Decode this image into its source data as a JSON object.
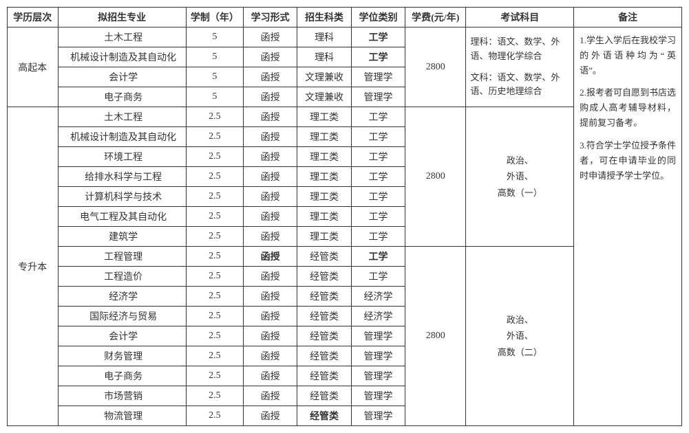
{
  "headers": {
    "level": "学历层次",
    "major": "拟招生专业",
    "years": "学制（年）",
    "mode": "学习形式",
    "cat": "招生科类",
    "degree": "学位类别",
    "fee": "学费(元/年)",
    "subjects": "考试科目",
    "remarks": "备注"
  },
  "g1": {
    "level": "高起本",
    "rows": [
      {
        "major": "土木工程",
        "years": "5",
        "mode": "函授",
        "cat": "理科",
        "degree": "工学",
        "degree_bold": true
      },
      {
        "major": "机械设计制造及其自动化",
        "years": "5",
        "mode": "函授",
        "cat": "理科",
        "degree": "工学",
        "degree_bold": true
      },
      {
        "major": "会计学",
        "years": "5",
        "mode": "函授",
        "cat": "文理兼收",
        "degree": "管理学"
      },
      {
        "major": "电子商务",
        "years": "5",
        "mode": "函授",
        "cat": "文理兼收",
        "degree": "管理学"
      }
    ],
    "fee": "2800",
    "subjects_line1": "理科：语文、数学、外语、物理化学综合",
    "subjects_line2": "文科：语文、数学、外语、历史地理综合"
  },
  "g2": {
    "level": "专升本",
    "fee": "2800",
    "subjects": "政治、\n外语、\n高数（一）",
    "rows": [
      {
        "major": "土木工程",
        "years": "2.5",
        "mode": "函授",
        "cat": "理工类",
        "degree": "工学"
      },
      {
        "major": "机械设计制造及其自动化",
        "years": "2.5",
        "mode": "函授",
        "cat": "理工类",
        "degree": "工学"
      },
      {
        "major": "环境工程",
        "years": "2.5",
        "mode": "函授",
        "cat": "理工类",
        "degree": "工学"
      },
      {
        "major": "给排水科学与工程",
        "years": "2.5",
        "mode": "函授",
        "cat": "理工类",
        "degree": "工学"
      },
      {
        "major": "计算机科学与技术",
        "years": "2.5",
        "mode": "函授",
        "cat": "理工类",
        "degree": "工学"
      },
      {
        "major": "电气工程及其自动化",
        "years": "2.5",
        "mode": "函授",
        "cat": "理工类",
        "degree": "工学"
      },
      {
        "major": "建筑学",
        "years": "2.5",
        "mode": "函授",
        "cat": "理工类",
        "degree": "工学"
      }
    ]
  },
  "g3": {
    "fee": "2800",
    "subjects": "政治、\n外语、\n高数（二）",
    "rows": [
      {
        "major": "工程管理",
        "years": "2.5",
        "mode": "函授",
        "mode_bold": true,
        "cat": "经管类",
        "degree": "工学",
        "degree_bold": true
      },
      {
        "major": "工程造价",
        "years": "2.5",
        "mode": "函授",
        "cat": "经管类",
        "degree": "工学"
      },
      {
        "major": "经济学",
        "years": "2.5",
        "mode": "函授",
        "cat": "经管类",
        "degree": "经济学"
      },
      {
        "major": "国际经济与贸易",
        "years": "2.5",
        "mode": "函授",
        "cat": "经管类",
        "degree": "经济学"
      },
      {
        "major": "会计学",
        "years": "2.5",
        "mode": "函授",
        "cat": "经管类",
        "degree": "管理学"
      },
      {
        "major": "财务管理",
        "years": "2.5",
        "mode": "函授",
        "cat": "经管类",
        "degree": "管理学"
      },
      {
        "major": "电子商务",
        "years": "2.5",
        "mode": "函授",
        "cat": "经管类",
        "degree": "管理学"
      },
      {
        "major": "市场营销",
        "years": "2.5",
        "mode": "函授",
        "cat": "经管类",
        "degree": "管理学"
      },
      {
        "major": "物流管理",
        "years": "2.5",
        "mode": "函授",
        "cat": "经管类",
        "cat_bold": true,
        "degree": "管理学"
      }
    ]
  },
  "remarks": {
    "p1": "1.学生入学后在我校学习的外语语种均为“英语”。",
    "p2": "2.报考者可自愿到书店选购成人高考辅导材料，提前复习备考。",
    "p3": "3.符合学士学位授予条件者，可在申请毕业的同时申请授予学士学位。"
  },
  "style": {
    "border_color": "#333333",
    "text_color": "#333333",
    "bg_color": "#ffffff",
    "font_size_pt": 14,
    "remark_font_size_pt": 13
  }
}
